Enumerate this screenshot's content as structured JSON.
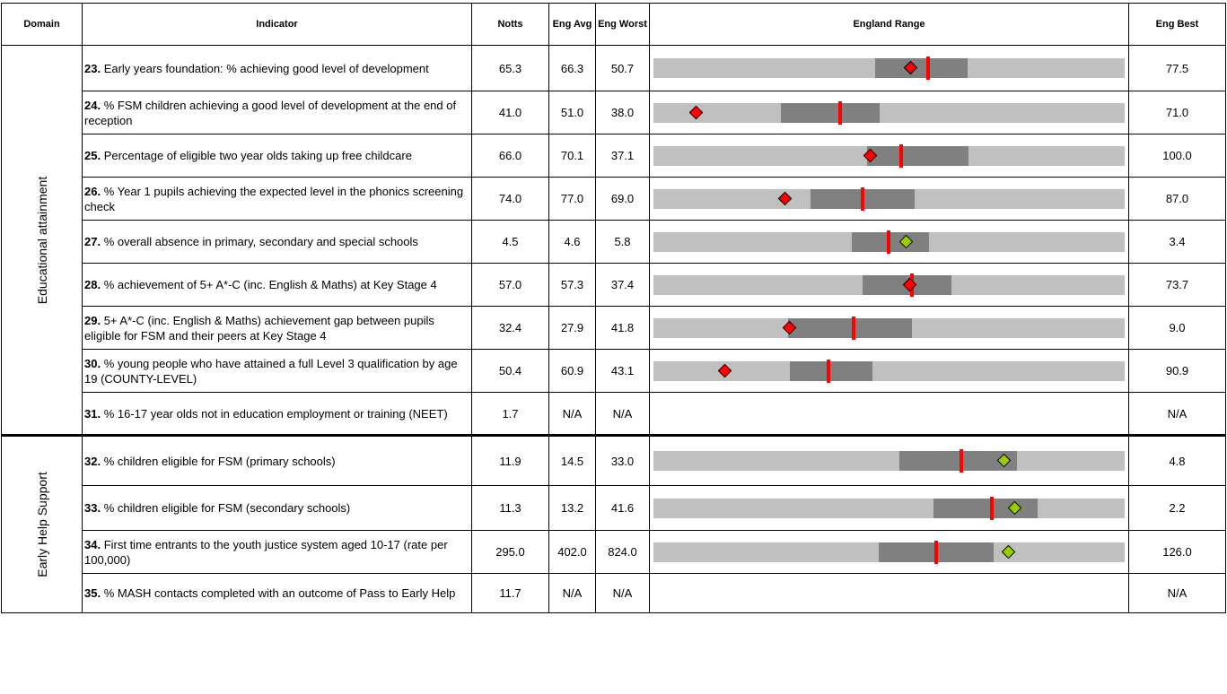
{
  "headers": {
    "domain": "Domain",
    "indicator": "Indicator",
    "notts": "Notts",
    "eng_avg": "Eng Avg",
    "eng_worst": "Eng Worst",
    "range": "England Range",
    "eng_best": "Eng Best"
  },
  "domains": {
    "edu": "Educational attainment",
    "early": "Early Help Support"
  },
  "colors": {
    "bar_background": "#c0c0c0",
    "interquartile": "#808080",
    "england_average_marker": "#ff0000",
    "worse_marker": "#ff0000",
    "better_marker": "#99cc00"
  },
  "rows": [
    {
      "num": "23.",
      "text": " Early years foundation: % achieving good level of development",
      "notts": "65.3",
      "avg": "66.3",
      "worst": "50.7",
      "best": "77.5",
      "range": {
        "iq_lo": 0.47,
        "iq_hi": 0.667,
        "avg": 0.583,
        "notts": 0.547,
        "marker": "red"
      }
    },
    {
      "num": "24.",
      "text": " % FSM children achieving a good level of development at the end of reception",
      "notts": "41.0",
      "avg": "51.0",
      "worst": "38.0",
      "best": "71.0",
      "range": {
        "iq_lo": 0.27,
        "iq_hi": 0.48,
        "avg": 0.397,
        "notts": 0.092,
        "marker": "red"
      }
    },
    {
      "num": "25.",
      "text": " Percentage of eligible two year olds taking up free childcare",
      "notts": "66.0",
      "avg": "70.1",
      "worst": "37.1",
      "best": "100.0",
      "range": {
        "iq_lo": 0.453,
        "iq_hi": 0.669,
        "avg": 0.525,
        "notts": 0.46,
        "marker": "red"
      }
    },
    {
      "num": "26.",
      "text": " % Year 1 pupils achieving the expected level in the phonics screening check",
      "notts": "74.0",
      "avg": "77.0",
      "worst": "69.0",
      "best": "87.0",
      "range": {
        "iq_lo": 0.333,
        "iq_hi": 0.555,
        "avg": 0.443,
        "notts": 0.28,
        "marker": "red"
      }
    },
    {
      "num": "27.",
      "text": " % overall absence in primary, secondary and special schools",
      "notts": "4.5",
      "avg": "4.6",
      "worst": "5.8",
      "best": "3.4",
      "range": {
        "iq_lo": 0.42,
        "iq_hi": 0.585,
        "avg": 0.499,
        "notts": 0.537,
        "marker": "green"
      }
    },
    {
      "num": "28.",
      "text": " % achievement of 5+ A*-C (inc. English & Maths) at Key Stage 4",
      "notts": "57.0",
      "avg": "57.3",
      "worst": "37.4",
      "best": "73.7",
      "range": {
        "iq_lo": 0.443,
        "iq_hi": 0.633,
        "avg": 0.548,
        "notts": 0.545,
        "marker": "red"
      }
    },
    {
      "num": "29.",
      "text": " 5+ A*-C (inc. English & Maths) achievement gap between pupils eligible for FSM and their peers at Key Stage 4",
      "notts": "32.4",
      "avg": "27.9",
      "worst": "41.8",
      "best": "9.0",
      "range": {
        "iq_lo": 0.285,
        "iq_hi": 0.548,
        "avg": 0.424,
        "notts": 0.289,
        "marker": "red"
      }
    },
    {
      "num": "30.",
      "text": " % young people who have attained a full Level 3 qualification by age 19 (COUNTY-LEVEL)",
      "notts": "50.4",
      "avg": "60.9",
      "worst": "43.1",
      "best": "90.9",
      "range": {
        "iq_lo": 0.29,
        "iq_hi": 0.465,
        "avg": 0.372,
        "notts": 0.152,
        "marker": "red"
      }
    },
    {
      "num": "31.",
      "text": " % 16-17 year olds not in education employment or training (NEET)",
      "notts": "1.7",
      "avg": "N/A",
      "worst": "N/A",
      "best": "N/A",
      "range": null
    },
    {
      "num": "32.",
      "text": " % children eligible for FSM (primary schools)",
      "notts": "11.9",
      "avg": "14.5",
      "worst": "33.0",
      "best": "4.8",
      "range": {
        "iq_lo": 0.522,
        "iq_hi": 0.771,
        "avg": 0.653,
        "notts": 0.745,
        "marker": "green"
      }
    },
    {
      "num": "33.",
      "text": " % children eligible for FSM (secondary schools)",
      "notts": "11.3",
      "avg": "13.2",
      "worst": "41.6",
      "best": "2.2",
      "range": {
        "iq_lo": 0.595,
        "iq_hi": 0.816,
        "avg": 0.718,
        "notts": 0.768,
        "marker": "green"
      }
    },
    {
      "num": "34.",
      "text": " First time entrants to the youth justice system aged 10-17 (rate per 100,000)",
      "notts": "295.0",
      "avg": "402.0",
      "worst": "824.0",
      "best": "126.0",
      "range": {
        "iq_lo": 0.478,
        "iq_hi": 0.722,
        "avg": 0.6,
        "notts": 0.755,
        "marker": "green"
      }
    },
    {
      "num": "35.",
      "text": " % MASH contacts completed with an outcome of Pass to Early Help",
      "notts": "11.7",
      "avg": "N/A",
      "worst": "N/A",
      "best": "N/A",
      "range": null
    }
  ]
}
